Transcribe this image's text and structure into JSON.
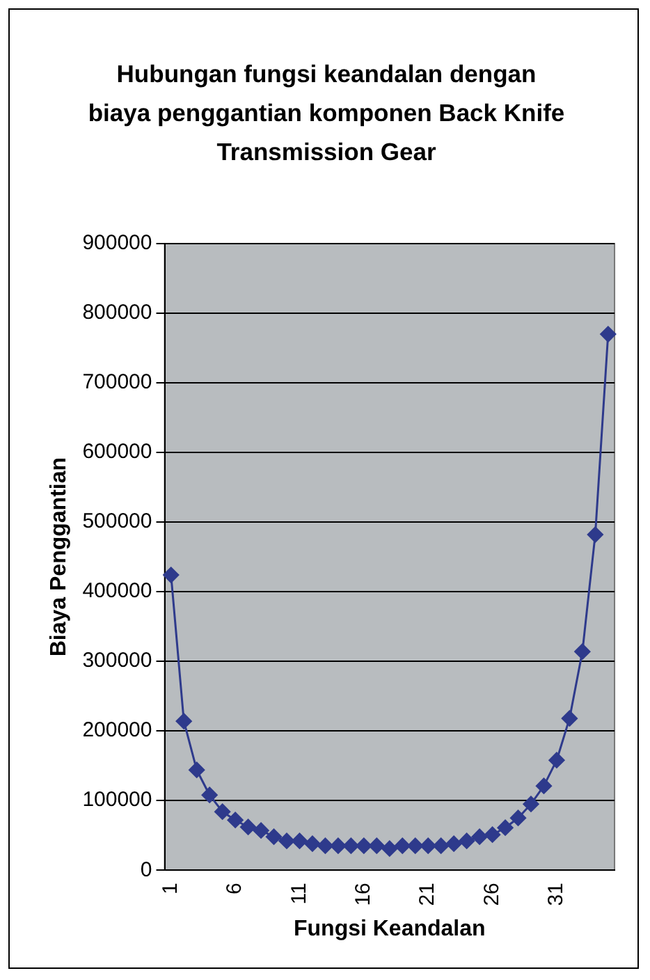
{
  "chart_data": {
    "type": "line",
    "title": "Hubungan fungsi keandalan dengan biaya penggantian komponen Back Knife Transmission Gear",
    "xlabel": "Fungsi Keandalan",
    "ylabel": "Biaya Penggantian",
    "categories": [
      "1",
      null,
      null,
      null,
      null,
      "6",
      null,
      null,
      null,
      null,
      "11",
      null,
      null,
      null,
      null,
      "16",
      null,
      null,
      null,
      null,
      "21",
      null,
      null,
      null,
      null,
      "26",
      null,
      null,
      null,
      null,
      "31",
      null,
      null,
      null,
      null
    ],
    "series": [
      {
        "color": "#2e3a8c",
        "values": [
          424000,
          214000,
          144000,
          108000,
          84000,
          72000,
          62000,
          57000,
          48000,
          42000,
          42000,
          38000,
          35000,
          35000,
          35000,
          35000,
          35000,
          31000,
          35000,
          35000,
          35000,
          35000,
          38000,
          42000,
          48000,
          51000,
          61000,
          75000,
          95000,
          121000,
          158000,
          218000,
          314000,
          482000,
          770000
        ]
      }
    ],
    "ylim": [
      0,
      900000
    ],
    "yticks": [
      0,
      100000,
      200000,
      300000,
      400000,
      500000,
      600000,
      700000,
      800000,
      900000
    ],
    "grid": "y",
    "legend": false,
    "marker": "diamond",
    "line_style": "solid"
  }
}
